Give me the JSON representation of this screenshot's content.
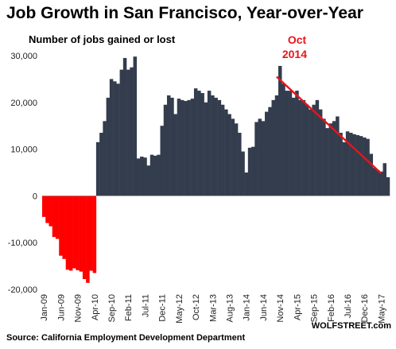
{
  "chart_data": {
    "type": "bar",
    "title": "Job Growth in San Francisco, Year-over-Year",
    "ylabel": "Number of jobs gained or lost",
    "ylim": [
      -20000,
      30000
    ],
    "yticks": [
      -20000,
      -10000,
      0,
      10000,
      20000,
      30000
    ],
    "ytick_labels": [
      "-20,000",
      "-10,000",
      "0",
      "10,000",
      "20,000",
      "30,000"
    ],
    "start_month": "Jan-09",
    "x_tick_labels": [
      "Jan-09",
      "Jun-09",
      "Nov-09",
      "Apr-10",
      "Sep-10",
      "Feb-11",
      "Jul-11",
      "Dec-11",
      "May-12",
      "Oct-12",
      "Mar-13",
      "Aug-13",
      "Jan-14",
      "Jun-14",
      "Nov-14",
      "Apr-15",
      "Sep-15",
      "Feb-16",
      "Jul-16",
      "Dec-16",
      "May-17"
    ],
    "values": [
      -4500,
      -5800,
      -6500,
      -8800,
      -9200,
      -12800,
      -13500,
      -15800,
      -16000,
      -15500,
      -15900,
      -16200,
      -17800,
      -18600,
      -16000,
      -16500,
      11500,
      13500,
      16000,
      21000,
      25000,
      24500,
      24000,
      27000,
      29500,
      27000,
      27500,
      29800,
      8000,
      8400,
      8200,
      6500,
      8800,
      8600,
      8800,
      15000,
      19500,
      21500,
      21000,
      17500,
      20800,
      20500,
      20300,
      20500,
      20800,
      23000,
      22500,
      22000,
      20000,
      22500,
      21500,
      21000,
      20500,
      19500,
      18500,
      17500,
      16500,
      15500,
      13500,
      9500,
      5000,
      10300,
      10500,
      15800,
      16500,
      16000,
      18000,
      19000,
      20500,
      21500,
      27800,
      24000,
      22500,
      22500,
      21000,
      22500,
      20500,
      20500,
      19500,
      18500,
      19500,
      20500,
      18500,
      16500,
      14500,
      15500,
      16000,
      17000,
      13500,
      11500,
      13800,
      13500,
      13200,
      13000,
      12800,
      12500,
      12200,
      9000,
      6000,
      5500,
      5200,
      7000,
      4000
    ],
    "bar_color_positive": "#333d4d",
    "bar_color_negative": "#ff0000",
    "annotation": {
      "text_line1": "Oct",
      "text_line2": "2014",
      "color": "#e8141b"
    },
    "trend_line": {
      "x_start": "Oct-14",
      "y_start": 25500,
      "x_end": "May-17",
      "y_end": 4800,
      "color": "#e8141b"
    },
    "grid": false,
    "legend": "none"
  },
  "source": "Source: California Employment Development Department",
  "brand": "WOLFSTREET.com"
}
